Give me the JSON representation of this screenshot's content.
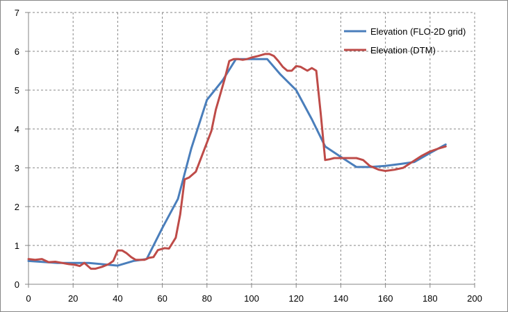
{
  "chart_data": {
    "type": "line",
    "title": "",
    "xlabel": "",
    "ylabel": "",
    "xlim": [
      0,
      200
    ],
    "ylim": [
      0,
      7
    ],
    "xticks": [
      0,
      20,
      40,
      60,
      80,
      100,
      120,
      140,
      160,
      180,
      200
    ],
    "yticks": [
      0,
      1,
      2,
      3,
      4,
      5,
      6,
      7
    ],
    "xtick_labels": [
      "0",
      "20",
      "40",
      "60",
      "80",
      "100",
      "120",
      "140",
      "160",
      "180",
      "200"
    ],
    "ytick_labels": [
      "0",
      "1",
      "2",
      "3",
      "4",
      "5",
      "6",
      "7"
    ],
    "grid": true,
    "legend_position": "top-right",
    "series": [
      {
        "name": "Elevation (FLO-2D grid)",
        "color": "#4a7ebb",
        "x": [
          0,
          13,
          27,
          40,
          47,
          53,
          60,
          67,
          73,
          80,
          87,
          93,
          100,
          107,
          113,
          120,
          127,
          133,
          140,
          147,
          153,
          160,
          167,
          173,
          180,
          187
        ],
        "y": [
          0.6,
          0.55,
          0.55,
          0.48,
          0.6,
          0.65,
          1.45,
          2.2,
          3.5,
          4.75,
          5.25,
          5.8,
          5.8,
          5.8,
          5.4,
          5.0,
          4.25,
          3.55,
          3.28,
          3.02,
          3.02,
          3.05,
          3.1,
          3.15,
          3.38,
          3.6
        ]
      },
      {
        "name": "Elevation (DTM)",
        "color": "#be4b48",
        "x": [
          0,
          3,
          6,
          9,
          12,
          15,
          18,
          21,
          23,
          25,
          28,
          30,
          33,
          36,
          38,
          40,
          42,
          44,
          46,
          48,
          50,
          52,
          54,
          56,
          58,
          61,
          63,
          66,
          68,
          70,
          72,
          75,
          77,
          80,
          82,
          84,
          86,
          88,
          90,
          92,
          94,
          96,
          98,
          100,
          103,
          106,
          108,
          110,
          112,
          114,
          116,
          118,
          120,
          122,
          125,
          127,
          129,
          131,
          133,
          135,
          137,
          140,
          143,
          147,
          150,
          153,
          157,
          160,
          164,
          168,
          172,
          176,
          180,
          184,
          187
        ],
        "y": [
          0.65,
          0.63,
          0.65,
          0.57,
          0.58,
          0.55,
          0.52,
          0.5,
          0.47,
          0.55,
          0.4,
          0.4,
          0.45,
          0.52,
          0.6,
          0.87,
          0.87,
          0.8,
          0.7,
          0.63,
          0.63,
          0.63,
          0.68,
          0.7,
          0.88,
          0.93,
          0.92,
          1.2,
          1.8,
          2.7,
          2.75,
          2.9,
          3.2,
          3.65,
          3.95,
          4.5,
          4.9,
          5.3,
          5.75,
          5.8,
          5.8,
          5.78,
          5.8,
          5.84,
          5.88,
          5.93,
          5.93,
          5.88,
          5.75,
          5.6,
          5.5,
          5.5,
          5.62,
          5.6,
          5.5,
          5.57,
          5.5,
          4.4,
          3.2,
          3.22,
          3.25,
          3.25,
          3.25,
          3.25,
          3.2,
          3.05,
          2.95,
          2.92,
          2.95,
          3.0,
          3.15,
          3.3,
          3.42,
          3.5,
          3.55
        ]
      }
    ]
  }
}
